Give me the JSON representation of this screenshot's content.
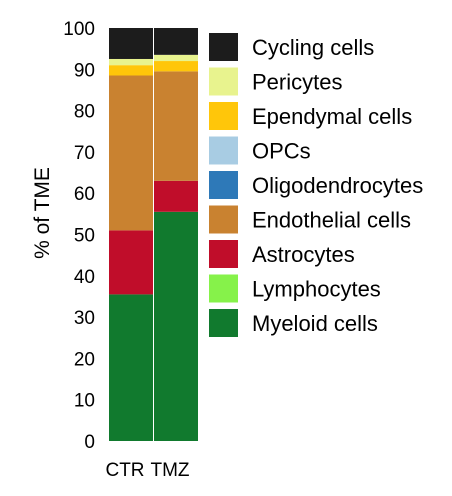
{
  "chart_data": {
    "type": "bar",
    "stacked": true,
    "title": "",
    "xlabel": "",
    "ylabel": "% of TME",
    "ylim": [
      0,
      100
    ],
    "yticks": [
      0,
      10,
      20,
      30,
      40,
      50,
      60,
      70,
      80,
      90,
      100
    ],
    "categories": [
      "CTR",
      "TMZ"
    ],
    "series": [
      {
        "name": "Myeloid cells",
        "color": "#117a2e",
        "values": [
          35.5,
          55.5
        ]
      },
      {
        "name": "Lymphocytes",
        "color": "#86f24a",
        "values": [
          0,
          0
        ]
      },
      {
        "name": "Astrocytes",
        "color": "#c00d2a",
        "values": [
          15.5,
          7.5
        ]
      },
      {
        "name": "Endothelial cells",
        "color": "#c98230",
        "values": [
          37.5,
          26.5
        ]
      },
      {
        "name": "Oligodendrocytes",
        "color": "#2e79b8",
        "values": [
          0,
          0
        ]
      },
      {
        "name": "OPCs",
        "color": "#a8cce3",
        "values": [
          0,
          0
        ]
      },
      {
        "name": "Ependymal cells",
        "color": "#ffc60a",
        "values": [
          2.5,
          2.5
        ]
      },
      {
        "name": "Pericytes",
        "color": "#e8f38e",
        "values": [
          1.5,
          1.5
        ]
      },
      {
        "name": "Cycling cells",
        "color": "#1c1c1c",
        "values": [
          7.5,
          6.5
        ]
      }
    ],
    "legend": {
      "placement": "right",
      "order": [
        "Cycling cells",
        "Pericytes",
        "Ependymal cells",
        "OPCs",
        "Oligodendrocytes",
        "Endothelial cells",
        "Astrocytes",
        "Lymphocytes",
        "Myeloid cells"
      ]
    },
    "grid": false
  }
}
